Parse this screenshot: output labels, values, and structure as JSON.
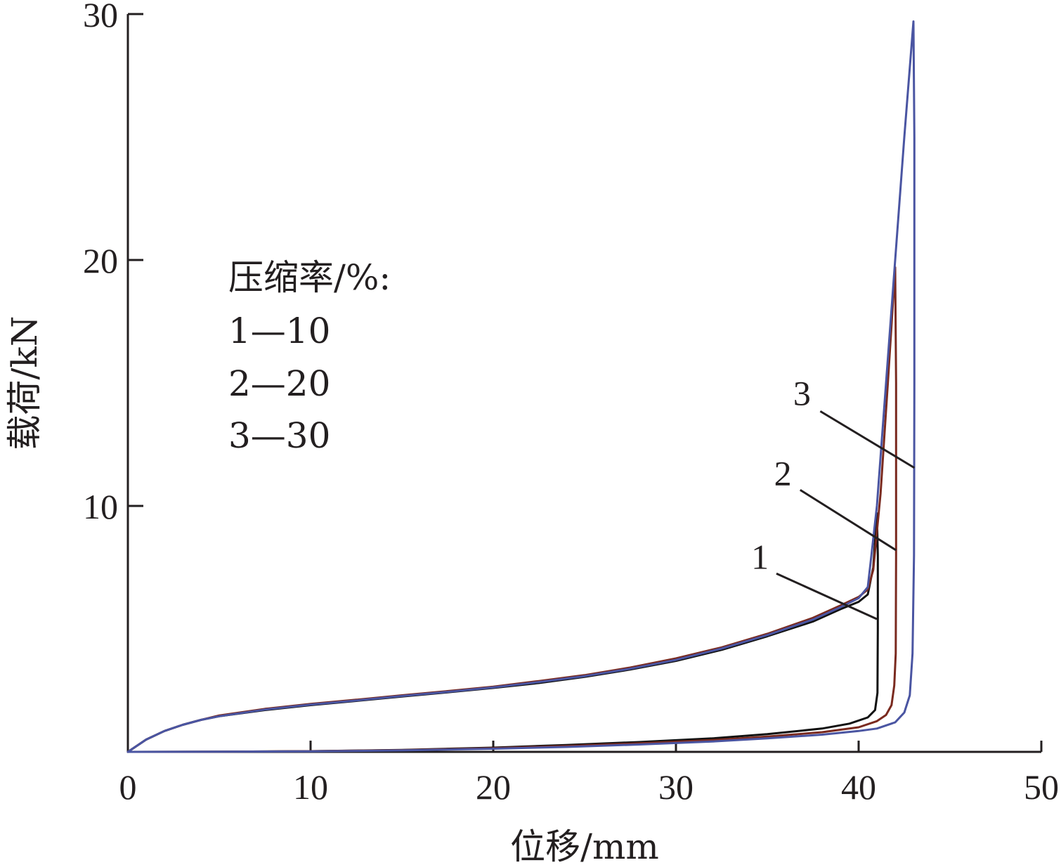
{
  "chart_data": {
    "type": "line",
    "xlabel": "位移/mm",
    "ylabel": "载荷/kN",
    "xlim": [
      0,
      50
    ],
    "ylim": [
      0,
      30
    ],
    "x_ticks": [
      "0",
      "10",
      "20",
      "30",
      "40",
      "50"
    ],
    "y_ticks": [
      "10",
      "20",
      "30"
    ],
    "legend": {
      "title": "压缩率/%:",
      "entries": [
        "1—10",
        "2—20",
        "3—30"
      ],
      "placement": "upper-left"
    },
    "grid": false,
    "series": [
      {
        "name": "1",
        "color": "#111111",
        "points": [
          [
            0,
            0
          ],
          [
            0.5,
            0.25
          ],
          [
            1,
            0.5
          ],
          [
            2,
            0.85
          ],
          [
            3,
            1.1
          ],
          [
            4,
            1.3
          ],
          [
            5,
            1.45
          ],
          [
            7.5,
            1.7
          ],
          [
            10,
            1.9
          ],
          [
            12.5,
            2.07
          ],
          [
            15,
            2.25
          ],
          [
            17.5,
            2.42
          ],
          [
            20,
            2.6
          ],
          [
            22.5,
            2.8
          ],
          [
            25,
            3.05
          ],
          [
            27.5,
            3.35
          ],
          [
            30,
            3.7
          ],
          [
            32.5,
            4.15
          ],
          [
            35,
            4.7
          ],
          [
            37.5,
            5.3
          ],
          [
            39,
            5.8
          ],
          [
            40,
            6.1
          ],
          [
            40.5,
            6.4
          ],
          [
            40.8,
            7.5
          ],
          [
            41,
            9.7
          ],
          [
            41.05,
            8.0
          ],
          [
            41.05,
            5.0
          ],
          [
            41.03,
            2.4
          ],
          [
            40.9,
            1.7
          ],
          [
            40.5,
            1.4
          ],
          [
            39.5,
            1.15
          ],
          [
            38,
            0.95
          ],
          [
            35,
            0.72
          ],
          [
            32,
            0.55
          ],
          [
            28,
            0.4
          ],
          [
            24,
            0.28
          ],
          [
            20,
            0.17
          ],
          [
            15,
            0.08
          ],
          [
            10,
            0.03
          ],
          [
            5,
            0.01
          ],
          [
            0,
            0
          ]
        ]
      },
      {
        "name": "2",
        "color": "#7a2a1f",
        "points": [
          [
            0,
            0
          ],
          [
            0.5,
            0.25
          ],
          [
            1,
            0.5
          ],
          [
            2,
            0.85
          ],
          [
            3,
            1.1
          ],
          [
            4,
            1.3
          ],
          [
            5,
            1.48
          ],
          [
            7.5,
            1.75
          ],
          [
            10,
            1.95
          ],
          [
            12.5,
            2.12
          ],
          [
            15,
            2.3
          ],
          [
            17.5,
            2.47
          ],
          [
            20,
            2.65
          ],
          [
            22.5,
            2.88
          ],
          [
            25,
            3.12
          ],
          [
            27.5,
            3.43
          ],
          [
            30,
            3.8
          ],
          [
            32.5,
            4.25
          ],
          [
            35,
            4.8
          ],
          [
            37.5,
            5.45
          ],
          [
            39,
            5.95
          ],
          [
            40,
            6.3
          ],
          [
            40.5,
            6.6
          ],
          [
            40.8,
            7.4
          ],
          [
            41.2,
            10.5
          ],
          [
            41.6,
            15.0
          ],
          [
            42,
            19.7
          ],
          [
            42.05,
            15.0
          ],
          [
            42.05,
            8.0
          ],
          [
            42.03,
            4.0
          ],
          [
            41.95,
            2.7
          ],
          [
            41.8,
            1.9
          ],
          [
            41.5,
            1.5
          ],
          [
            41,
            1.25
          ],
          [
            40,
            1.0
          ],
          [
            38,
            0.8
          ],
          [
            35,
            0.62
          ],
          [
            32,
            0.48
          ],
          [
            28,
            0.35
          ],
          [
            24,
            0.24
          ],
          [
            20,
            0.15
          ],
          [
            15,
            0.07
          ],
          [
            10,
            0.03
          ],
          [
            5,
            0.01
          ],
          [
            0,
            0
          ]
        ]
      },
      {
        "name": "3",
        "color": "#4a55a2",
        "points": [
          [
            0,
            0
          ],
          [
            0.5,
            0.25
          ],
          [
            1,
            0.5
          ],
          [
            2,
            0.85
          ],
          [
            3,
            1.1
          ],
          [
            4,
            1.3
          ],
          [
            5,
            1.45
          ],
          [
            7.5,
            1.72
          ],
          [
            10,
            1.92
          ],
          [
            12.5,
            2.09
          ],
          [
            15,
            2.27
          ],
          [
            17.5,
            2.44
          ],
          [
            20,
            2.62
          ],
          [
            22.5,
            2.84
          ],
          [
            25,
            3.08
          ],
          [
            27.5,
            3.38
          ],
          [
            30,
            3.74
          ],
          [
            32.5,
            4.2
          ],
          [
            35,
            4.75
          ],
          [
            37.5,
            5.38
          ],
          [
            39,
            5.88
          ],
          [
            40,
            6.25
          ],
          [
            40.5,
            6.7
          ],
          [
            40.7,
            8.0
          ],
          [
            41,
            10.0
          ],
          [
            41.5,
            15.0
          ],
          [
            42,
            20.0
          ],
          [
            42.5,
            25.0
          ],
          [
            43,
            29.7
          ],
          [
            43.05,
            25.0
          ],
          [
            43.05,
            15.0
          ],
          [
            43.03,
            8.0
          ],
          [
            42.95,
            4.0
          ],
          [
            42.8,
            2.3
          ],
          [
            42.5,
            1.6
          ],
          [
            42,
            1.2
          ],
          [
            41,
            0.95
          ],
          [
            40,
            0.85
          ],
          [
            38,
            0.7
          ],
          [
            35,
            0.55
          ],
          [
            32,
            0.42
          ],
          [
            28,
            0.3
          ],
          [
            24,
            0.2
          ],
          [
            20,
            0.13
          ],
          [
            15,
            0.06
          ],
          [
            10,
            0.02
          ],
          [
            5,
            0.01
          ],
          [
            0,
            0
          ]
        ]
      }
    ],
    "annotations": [
      {
        "label": "1",
        "text_at": [
          34.6,
          7.45
        ],
        "line_from": [
          35.5,
          7.25
        ],
        "line_to": [
          41.0,
          5.4
        ]
      },
      {
        "label": "2",
        "text_at": [
          35.85,
          10.85
        ],
        "line_from": [
          36.8,
          10.65
        ],
        "line_to": [
          42.05,
          8.2
        ]
      },
      {
        "label": "3",
        "text_at": [
          36.9,
          14.1
        ],
        "line_from": [
          37.9,
          13.85
        ],
        "line_to": [
          43.05,
          11.55
        ]
      }
    ]
  }
}
